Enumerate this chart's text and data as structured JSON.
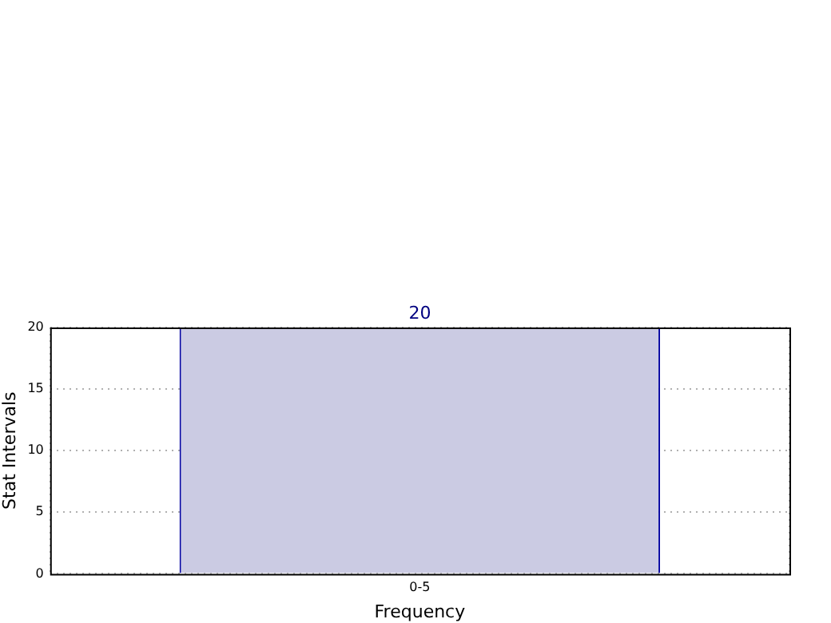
{
  "chart_data": {
    "type": "bar",
    "categories": [
      "0-5"
    ],
    "values": [
      20
    ],
    "color": "#cbcbe3",
    "xlabel": "Frequency",
    "ylabel": "Stat Intervals",
    "ylim": [
      0,
      20
    ],
    "yticks": [
      0,
      5,
      10,
      15,
      20
    ],
    "grid": true,
    "data_labels": true
  }
}
